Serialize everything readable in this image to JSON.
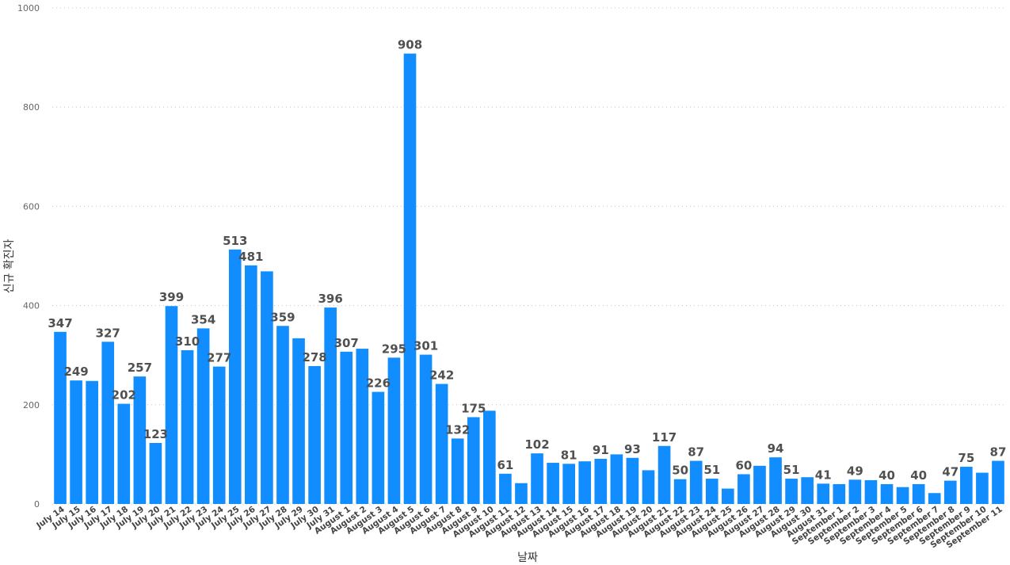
{
  "chart_data": {
    "type": "bar",
    "ylabel": "신규 확진자",
    "xlabel": "날짜",
    "ylim": [
      0,
      1000
    ],
    "yticks": [
      0,
      200,
      400,
      600,
      800,
      1000
    ],
    "grid": true,
    "bar_color": "#118DFF",
    "categories": [
      "July 14",
      "July 15",
      "July 16",
      "July 17",
      "July 18",
      "July 19",
      "July 20",
      "July 21",
      "July 22",
      "July 23",
      "July 24",
      "July 25",
      "July 26",
      "July 27",
      "July 28",
      "July 29",
      "July 30",
      "July 31",
      "August 1",
      "August 2",
      "August 3",
      "August 4",
      "August 5",
      "August 6",
      "August 7",
      "August 8",
      "August 9",
      "August 10",
      "August 11",
      "August 12",
      "August 13",
      "August 14",
      "August 15",
      "August 16",
      "August 17",
      "August 18",
      "August 19",
      "August 20",
      "August 21",
      "August 22",
      "August 23",
      "August 24",
      "August 25",
      "August 26",
      "August 27",
      "August 28",
      "August 29",
      "August 30",
      "August 31",
      "September 1",
      "September 2",
      "September 3",
      "September 4",
      "September 5",
      "September 6",
      "September 7",
      "September 8",
      "September 9",
      "September 10",
      "September 11"
    ],
    "values": [
      347,
      249,
      248,
      327,
      202,
      257,
      123,
      399,
      310,
      354,
      277,
      513,
      481,
      469,
      359,
      334,
      278,
      396,
      307,
      313,
      226,
      295,
      908,
      301,
      242,
      132,
      175,
      188,
      61,
      42,
      102,
      83,
      81,
      86,
      91,
      100,
      93,
      68,
      117,
      50,
      87,
      51,
      31,
      60,
      77,
      94,
      51,
      54,
      41,
      40,
      49,
      48,
      40,
      34,
      40,
      22,
      47,
      75,
      63,
      87
    ],
    "labels": [
      "347",
      "249",
      "",
      "327",
      "202",
      "257",
      "123",
      "399",
      "310",
      "354",
      "277",
      "513",
      "481",
      "",
      "359",
      "",
      "278",
      "396",
      "307",
      "",
      "226",
      "295",
      "908",
      "301",
      "242",
      "132",
      "175",
      "",
      "61",
      "",
      "102",
      "",
      "81",
      "",
      "91",
      "",
      "93",
      "",
      "117",
      "50",
      "87",
      "51",
      "",
      "60",
      "",
      "94",
      "51",
      "",
      "41",
      "",
      "49",
      "",
      "40",
      "",
      "40",
      "",
      "47",
      "75",
      "",
      "87"
    ]
  }
}
